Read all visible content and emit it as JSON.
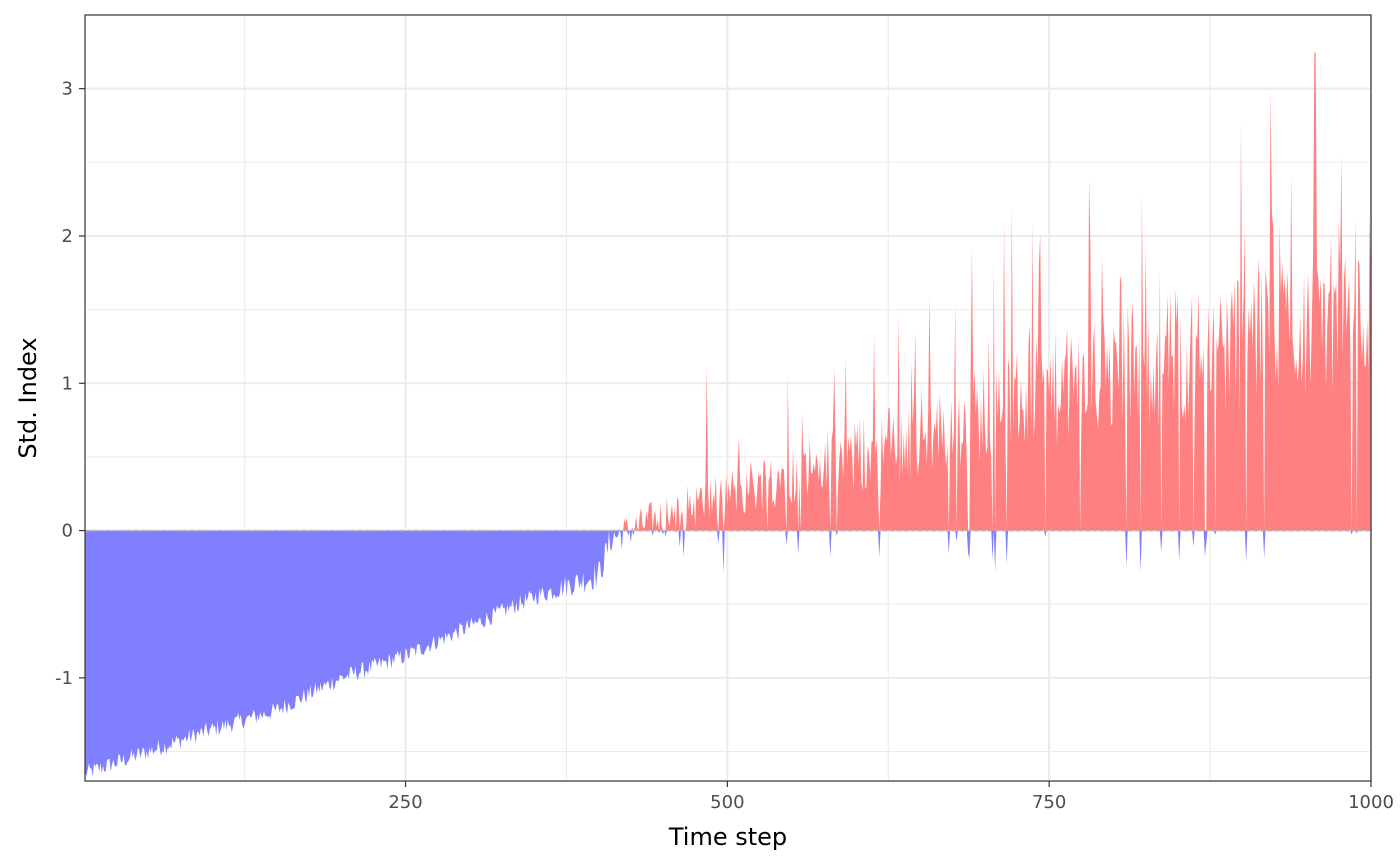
{
  "chart_data": {
    "type": "area",
    "title": "",
    "xlabel": "Time step",
    "ylabel": "Std. Index",
    "xlim": [
      1,
      1000
    ],
    "ylim": [
      -1.7,
      3.5
    ],
    "x_ticks": [
      250,
      500,
      750,
      1000
    ],
    "x_tick_labels": [
      "250",
      "500",
      "750",
      "1000"
    ],
    "y_ticks": [
      -1,
      0,
      1,
      2,
      3
    ],
    "y_tick_labels": [
      "-1",
      "0",
      "1",
      "2",
      "3"
    ],
    "grid": true,
    "legend": "none",
    "colors": {
      "positive": "#ff8080",
      "negative": "#8080ff",
      "baseline": "#b3b3b3"
    },
    "series": [
      {
        "x": [
          1,
          50,
          100,
          150,
          200,
          250,
          300,
          350,
          400,
          410,
          450,
          500,
          550,
          600,
          650,
          700,
          750,
          800,
          850,
          900,
          950,
          1000
        ],
        "values": [
          -1.65,
          -1.5,
          -1.35,
          -1.22,
          -1.0,
          -0.85,
          -0.65,
          -0.45,
          -0.3,
          -0.05,
          0.1,
          0.25,
          0.4,
          0.5,
          0.65,
          0.8,
          0.95,
          1.05,
          1.2,
          1.3,
          1.45,
          1.6
        ]
      }
    ]
  }
}
